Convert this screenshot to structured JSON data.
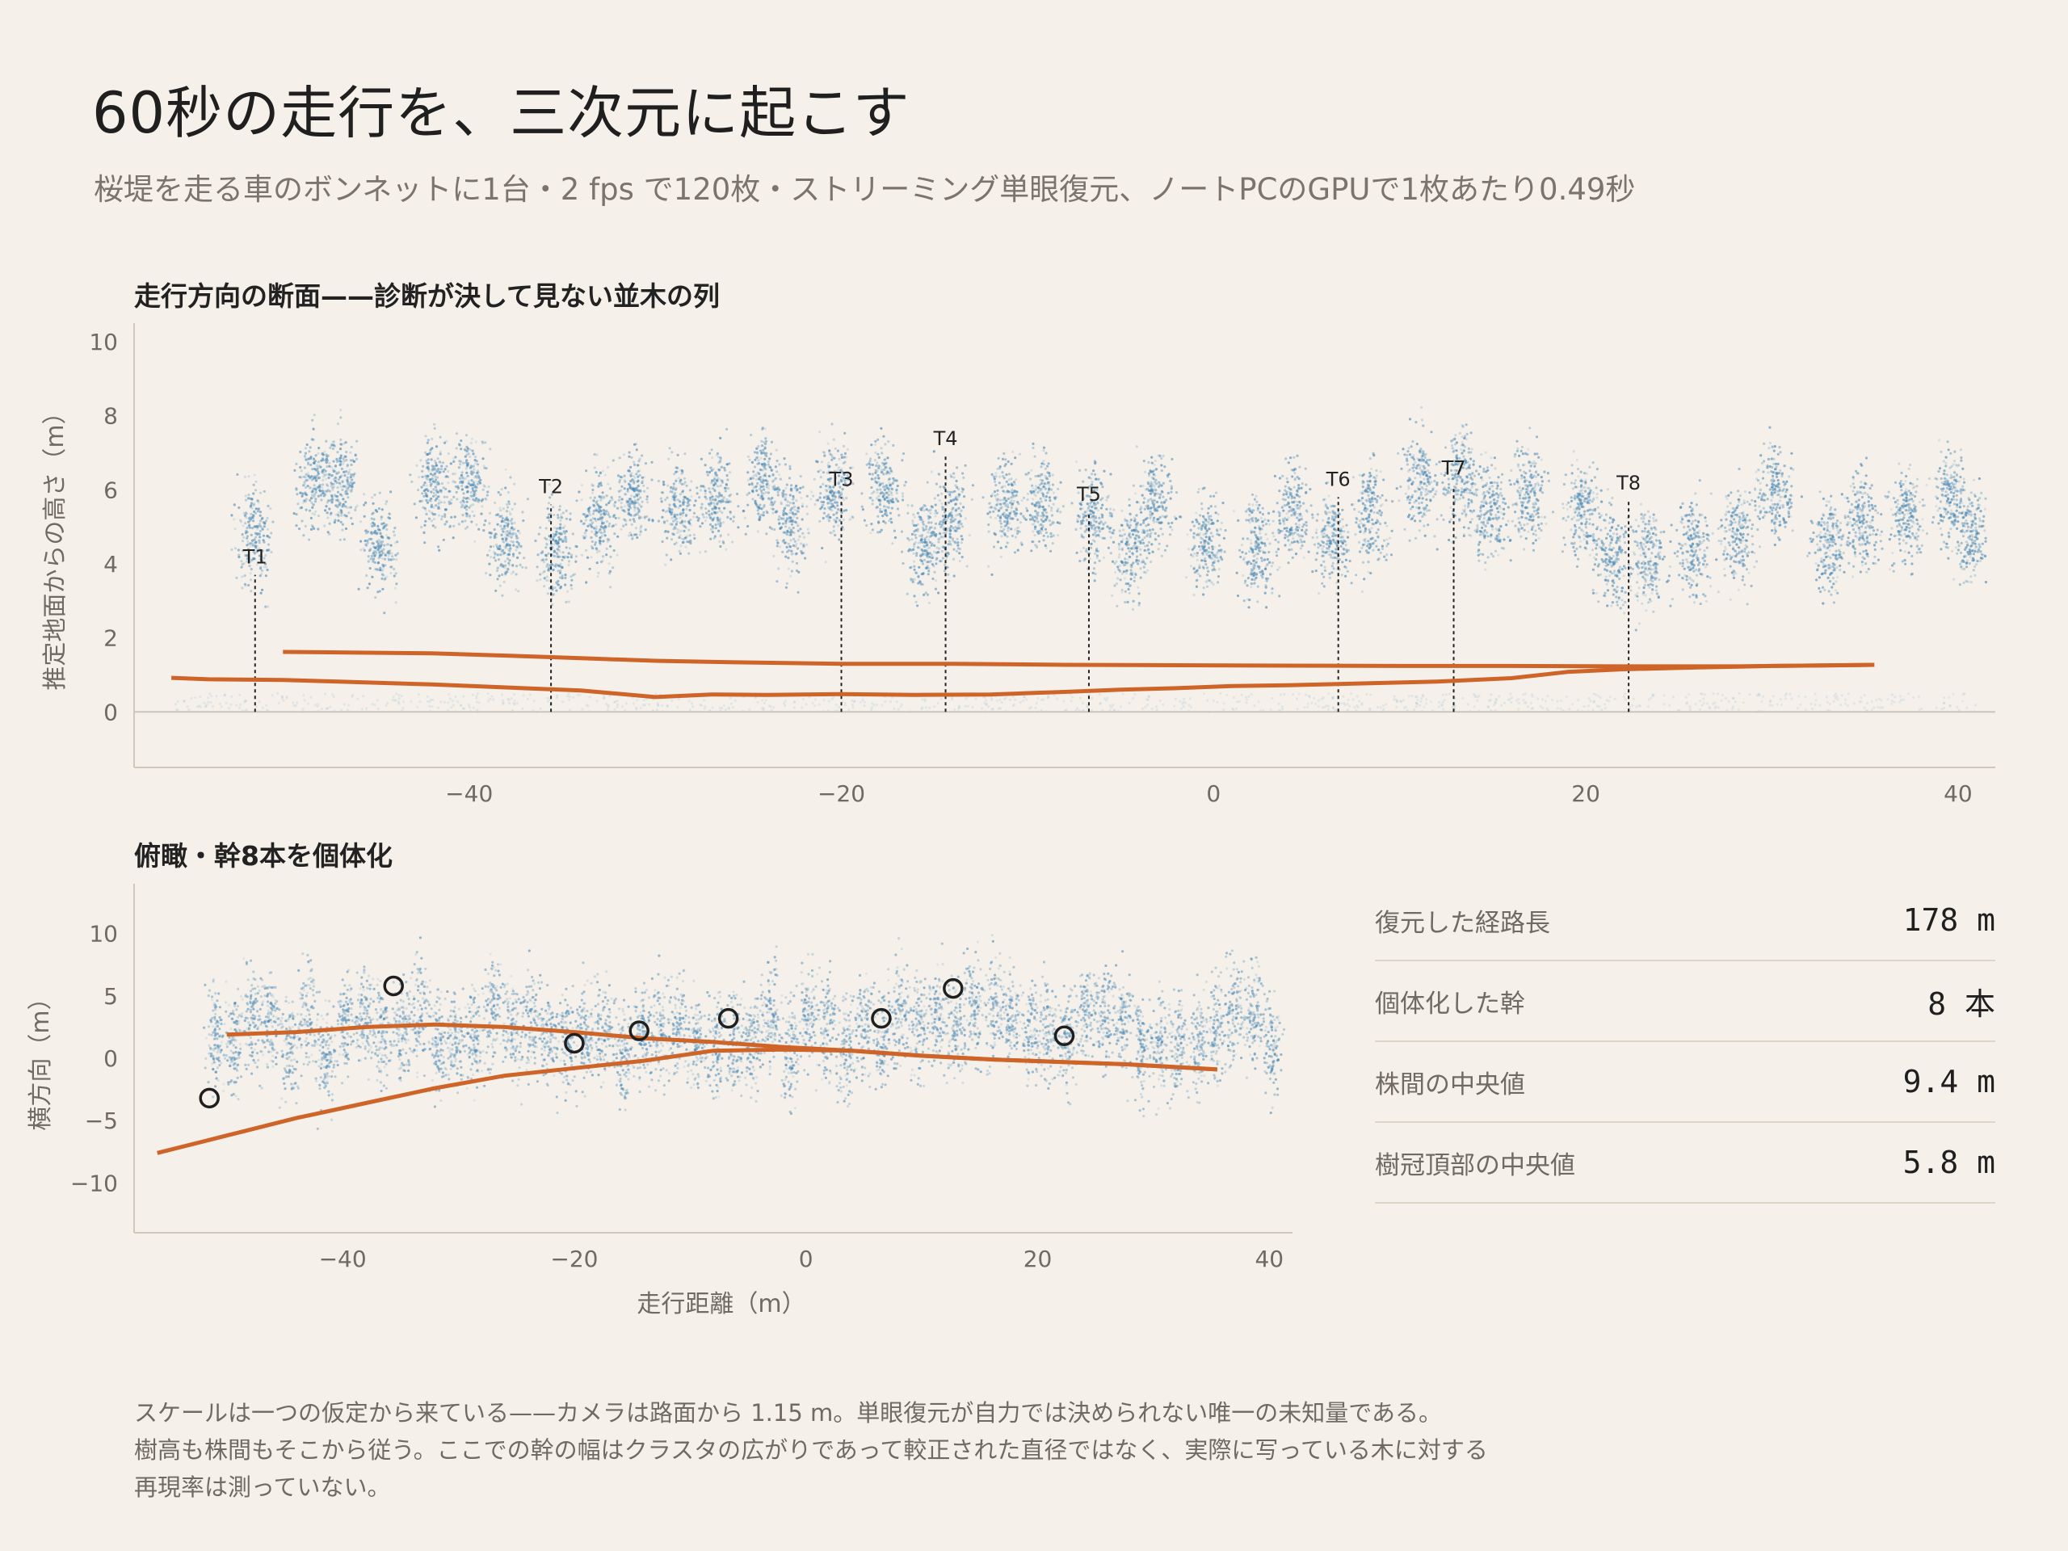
{
  "title": "60秒の走行を、三次元に起こす",
  "subtitle": "桜堤を走る車のボンネットに1台・2 fps で120枚・ストリーミング単眼復元、ノートPCのGPUで1枚あたり0.49秒",
  "stats": [
    {
      "label": "復元した経路長",
      "value": "178 m"
    },
    {
      "label": "個体化した幹",
      "value": "8 本"
    },
    {
      "label": "株間の中央値",
      "value": "9.4 m"
    },
    {
      "label": "樹冠頂部の中央値",
      "value": "5.8 m"
    }
  ],
  "caption": [
    "スケールは一つの仮定から来ている——カメラは路面から 1.15 m。単眼復元が自力では決められない唯一の未知量である。",
    "樹高も株間もそこから従う。ここでの幹の幅はクラスタの広がりであって較正された直径ではなく、実際に写っている木に対する",
    "再現率は測っていない。"
  ],
  "colors": {
    "background": "#f5f1ea",
    "trajectory": "#cf6428",
    "points": "#4f8cb8"
  },
  "chart_data": [
    {
      "type": "scatter",
      "title": "走行方向の断面——診断が決して見ない並木の列",
      "xlabel": "",
      "ylabel": "推定地面からの高さ（m）",
      "xlim": [
        -58,
        42
      ],
      "ylim": [
        -1.5,
        10.5
      ],
      "xticks": [
        -40,
        -20,
        0,
        20,
        40
      ],
      "yticks": [
        0,
        2,
        4,
        6,
        8,
        10
      ],
      "grid": false,
      "ground_line_y": 0,
      "trees": [
        {
          "label": "T1",
          "x": -51.5,
          "top": 3.7
        },
        {
          "label": "T2",
          "x": -35.6,
          "top": 5.6
        },
        {
          "label": "T3",
          "x": -20.0,
          "top": 5.8
        },
        {
          "label": "T4",
          "x": -14.4,
          "top": 6.9
        },
        {
          "label": "T5",
          "x": -6.7,
          "top": 5.4
        },
        {
          "label": "T6",
          "x": 6.7,
          "top": 5.8
        },
        {
          "label": "T7",
          "x": 12.9,
          "top": 6.1
        },
        {
          "label": "T8",
          "x": 22.3,
          "top": 5.7
        }
      ],
      "trajectory_lower": [
        [
          -56,
          0.92
        ],
        [
          -54,
          0.88
        ],
        [
          -50,
          0.86
        ],
        [
          -47,
          0.82
        ],
        [
          -42,
          0.74
        ],
        [
          -38,
          0.66
        ],
        [
          -34,
          0.58
        ],
        [
          -30,
          0.4
        ],
        [
          -27,
          0.47
        ],
        [
          -24,
          0.46
        ],
        [
          -20,
          0.48
        ],
        [
          -16,
          0.46
        ],
        [
          -12,
          0.47
        ],
        [
          -8,
          0.54
        ],
        [
          -5,
          0.6
        ],
        [
          -2,
          0.64
        ],
        [
          1,
          0.7
        ],
        [
          4,
          0.72
        ],
        [
          8,
          0.77
        ],
        [
          12,
          0.82
        ],
        [
          16,
          0.91
        ],
        [
          19,
          1.08
        ],
        [
          22,
          1.15
        ],
        [
          26,
          1.2
        ],
        [
          30,
          1.24
        ],
        [
          34,
          1.26
        ],
        [
          35.5,
          1.27
        ]
      ],
      "trajectory_upper": [
        [
          -50,
          1.62
        ],
        [
          -46,
          1.6
        ],
        [
          -42,
          1.58
        ],
        [
          -38,
          1.52
        ],
        [
          -34,
          1.45
        ],
        [
          -30,
          1.38
        ],
        [
          -26,
          1.34
        ],
        [
          -20,
          1.3
        ],
        [
          -14,
          1.3
        ],
        [
          -8,
          1.27
        ],
        [
          -2,
          1.26
        ],
        [
          4,
          1.25
        ],
        [
          10,
          1.24
        ],
        [
          16,
          1.24
        ],
        [
          22,
          1.23
        ],
        [
          28,
          1.23
        ],
        [
          35.5,
          1.27
        ]
      ]
    },
    {
      "type": "scatter",
      "title": "俯瞰・幹8本を個体化",
      "xlabel": "走行距離（m）",
      "ylabel": "横方向（m）",
      "xlim": [
        -58,
        42
      ],
      "ylim": [
        -14,
        14
      ],
      "xticks": [
        -40,
        -20,
        0,
        20,
        40
      ],
      "yticks": [
        -10,
        -5,
        0,
        5,
        10
      ],
      "grid": false,
      "trunks": [
        [
          -51.5,
          -3.2
        ],
        [
          -35.6,
          5.8
        ],
        [
          -20.0,
          1.2
        ],
        [
          -14.4,
          2.2
        ],
        [
          -6.7,
          3.2
        ],
        [
          6.5,
          3.2
        ],
        [
          12.7,
          5.6
        ],
        [
          22.3,
          1.8
        ]
      ],
      "trajectory_lower": [
        [
          -56,
          -7.6
        ],
        [
          -50,
          -6.2
        ],
        [
          -44,
          -4.8
        ],
        [
          -38,
          -3.6
        ],
        [
          -32,
          -2.4
        ],
        [
          -26,
          -1.4
        ],
        [
          -20,
          -0.8
        ],
        [
          -14,
          -0.2
        ],
        [
          -8,
          0.6
        ],
        [
          -2,
          0.7
        ],
        [
          4,
          0.6
        ],
        [
          10,
          0.2
        ],
        [
          16,
          -0.1
        ],
        [
          22,
          -0.3
        ],
        [
          28,
          -0.5
        ],
        [
          35.5,
          -0.9
        ]
      ],
      "trajectory_upper": [
        [
          -50,
          1.9
        ],
        [
          -44,
          2.1
        ],
        [
          -38,
          2.5
        ],
        [
          -32,
          2.7
        ],
        [
          -26,
          2.5
        ],
        [
          -20,
          2.1
        ],
        [
          -14,
          1.6
        ],
        [
          -8,
          1.3
        ],
        [
          -2,
          0.9
        ],
        [
          4,
          0.6
        ],
        [
          10,
          0.2
        ],
        [
          16,
          -0.1
        ],
        [
          22,
          -0.3
        ],
        [
          28,
          -0.5
        ],
        [
          35.5,
          -0.9
        ]
      ]
    }
  ]
}
